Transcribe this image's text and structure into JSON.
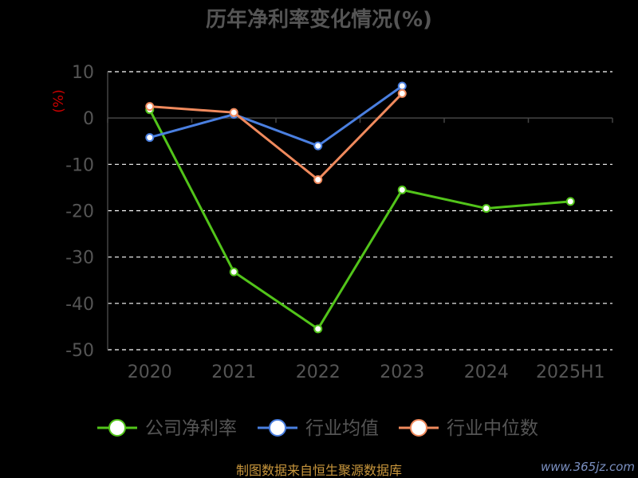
{
  "chart_data": {
    "type": "line",
    "title": "历年净利率变化情况(%)",
    "ylabel": "(%)",
    "categories": [
      "2020",
      "2021",
      "2022",
      "2023",
      "2024",
      "2025H1"
    ],
    "ylim": [
      -50,
      10
    ],
    "yticks": [
      10,
      0,
      -10,
      -20,
      -30,
      -40,
      -50
    ],
    "grid": true,
    "legend_position": "bottom",
    "series": [
      {
        "name": "公司净利率",
        "color": "#52c41a",
        "values": [
          1.8,
          -33.2,
          -45.5,
          -15.5,
          -19.5,
          -18.0
        ]
      },
      {
        "name": "行业均值",
        "color": "#4a7fe0",
        "values": [
          -4.2,
          0.8,
          -6.0,
          6.9,
          null,
          null
        ]
      },
      {
        "name": "行业中位数",
        "color": "#f08a5d",
        "values": [
          2.5,
          1.2,
          -13.3,
          5.3,
          null,
          null
        ]
      }
    ]
  },
  "footer": {
    "source": "制图数据来自恒生聚源数据库",
    "watermark": "www.365jz.com"
  }
}
